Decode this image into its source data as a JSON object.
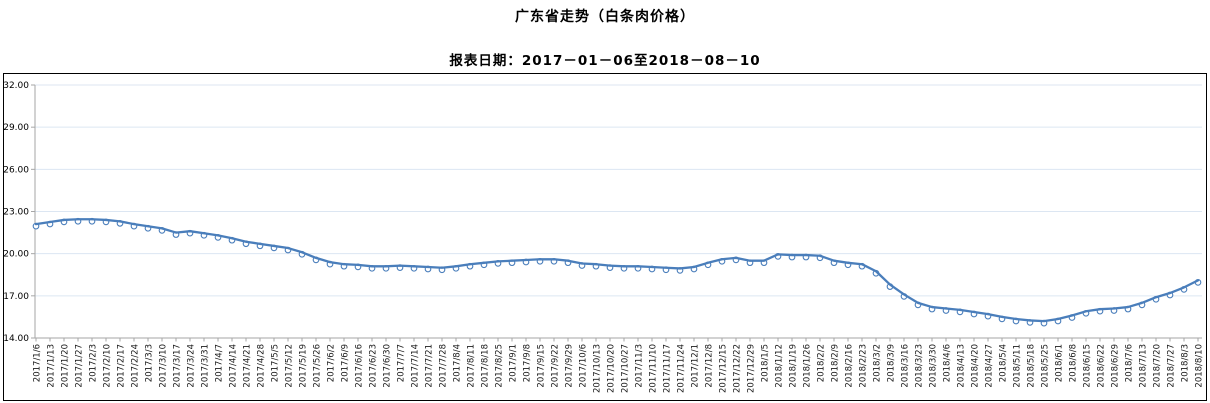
{
  "page": {
    "title": "广东省走势（白条肉价格）",
    "subtitle": "报表日期：2017－01－06至2018－08－10"
  },
  "chart_data": {
    "type": "line",
    "title": "广东省走势（白条肉价格）",
    "series_name": "白条肉价格",
    "xlabel": "",
    "ylabel": "",
    "ylim": [
      14,
      32
    ],
    "ytick_step": 3,
    "ytick_labels": [
      "32.00",
      "29.00",
      "26.00",
      "23.00",
      "20.00",
      "17.00",
      "14.00"
    ],
    "grid": true,
    "legend_position": "none",
    "line_color": "#4a7ebb",
    "marker_style": "open-circle",
    "grid_color": "#dce6f2",
    "axis_color": "#a6a6a6",
    "categories": [
      "2017/1/6",
      "2017/1/13",
      "2017/1/20",
      "2017/1/27",
      "2017/2/3",
      "2017/2/10",
      "2017/2/17",
      "2017/2/24",
      "2017/3/3",
      "2017/3/10",
      "2017/3/17",
      "2017/3/24",
      "2017/3/31",
      "2017/4/7",
      "2017/4/14",
      "2017/4/21",
      "2017/4/28",
      "2017/5/5",
      "2017/5/12",
      "2017/5/19",
      "2017/5/26",
      "2017/6/2",
      "2017/6/9",
      "2017/6/16",
      "2017/6/23",
      "2017/6/30",
      "2017/7/7",
      "2017/7/14",
      "2017/7/21",
      "2017/7/28",
      "2017/8/4",
      "2017/8/11",
      "2017/8/18",
      "2017/8/25",
      "2017/9/1",
      "2017/9/8",
      "2017/9/15",
      "2017/9/22",
      "2017/9/29",
      "2017/10/6",
      "2017/10/13",
      "2017/10/20",
      "2017/10/27",
      "2017/11/3",
      "2017/11/10",
      "2017/11/17",
      "2017/11/24",
      "2017/12/1",
      "2017/12/8",
      "2017/12/15",
      "2017/12/22",
      "2017/12/29",
      "2018/1/5",
      "2018/1/12",
      "2018/1/19",
      "2018/1/26",
      "2018/2/2",
      "2018/2/9",
      "2018/2/16",
      "2018/2/23",
      "2018/3/2",
      "2018/3/9",
      "2018/3/16",
      "2018/3/23",
      "2018/3/30",
      "2018/4/6",
      "2018/4/13",
      "2018/4/20",
      "2018/4/27",
      "2018/5/4",
      "2018/5/11",
      "2018/5/18",
      "2018/5/25",
      "2018/6/1",
      "2018/6/8",
      "2018/6/15",
      "2018/6/22",
      "2018/6/29",
      "2018/7/6",
      "2018/7/13",
      "2018/7/20",
      "2018/7/27",
      "2018/8/3",
      "2018/8/10"
    ],
    "values": [
      22.1,
      22.25,
      22.4,
      22.45,
      22.45,
      22.4,
      22.3,
      22.1,
      21.95,
      21.8,
      21.5,
      21.6,
      21.45,
      21.3,
      21.1,
      20.85,
      20.7,
      20.55,
      20.4,
      20.1,
      19.7,
      19.4,
      19.25,
      19.2,
      19.1,
      19.1,
      19.15,
      19.1,
      19.05,
      19.0,
      19.1,
      19.25,
      19.35,
      19.45,
      19.5,
      19.55,
      19.6,
      19.6,
      19.5,
      19.3,
      19.25,
      19.15,
      19.1,
      19.1,
      19.05,
      19.0,
      18.95,
      19.05,
      19.35,
      19.6,
      19.7,
      19.5,
      19.5,
      19.95,
      19.9,
      19.9,
      19.85,
      19.5,
      19.35,
      19.25,
      18.75,
      17.8,
      17.1,
      16.5,
      16.2,
      16.1,
      16.0,
      15.85,
      15.7,
      15.5,
      15.35,
      15.25,
      15.2,
      15.35,
      15.6,
      15.9,
      16.05,
      16.1,
      16.2,
      16.5,
      16.9,
      17.2,
      17.6,
      18.1
    ]
  }
}
